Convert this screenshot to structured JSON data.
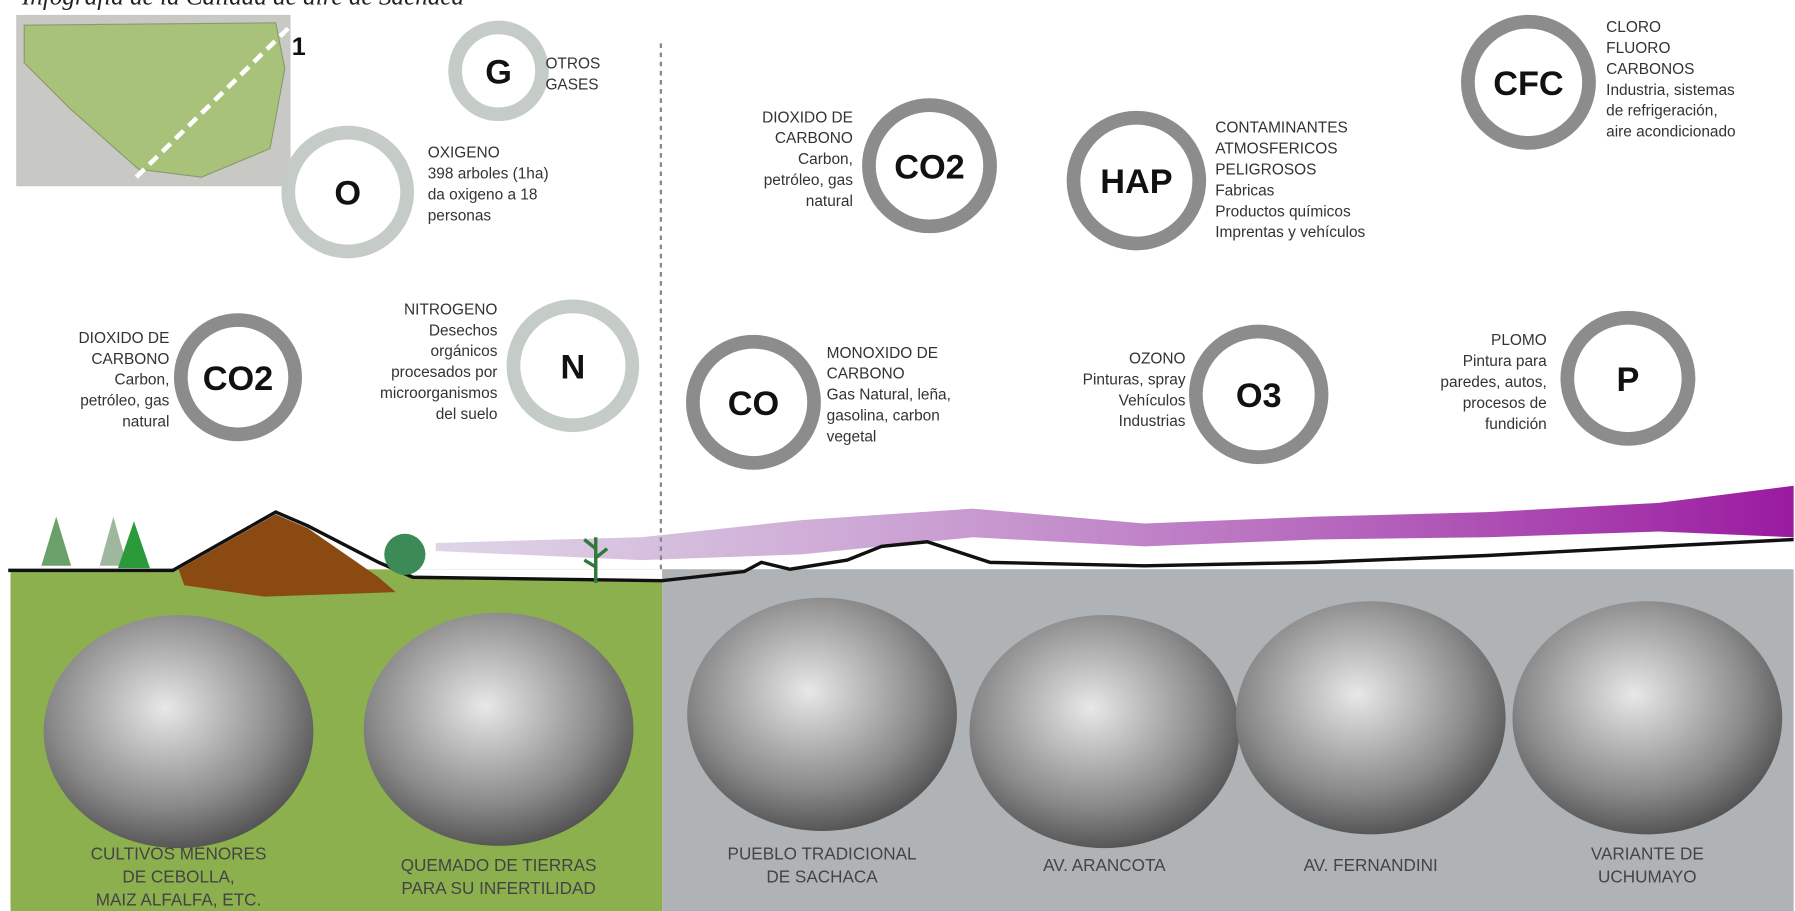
{
  "header": {
    "title": "Infografía de la Calidad de aire de Sachaca"
  },
  "map": {
    "label": "1"
  },
  "gases": [
    {
      "symbol": "G",
      "lines": [
        "OTROS",
        "GASES"
      ]
    },
    {
      "symbol": "O",
      "lines": [
        "OXIGENO",
        "398 arboles (1ha)",
        "da oxigeno a 18",
        "personas"
      ]
    },
    {
      "symbol": "CO2",
      "lines": [
        "DIOXIDO DE",
        "CARBONO",
        "Carbon,",
        "petróleo, gas",
        "natural"
      ]
    },
    {
      "symbol": "N",
      "lines": [
        "NITROGENO",
        "Desechos",
        "orgánicos",
        "procesados por",
        "microorganismos",
        "del suelo"
      ]
    },
    {
      "symbol": "CO2",
      "lines": [
        "DIOXIDO DE",
        "CARBONO",
        "Carbon,",
        "petróleo, gas",
        "natural"
      ]
    },
    {
      "symbol": "HAP",
      "lines": [
        "CONTAMINANTES",
        "ATMOSFERICOS",
        "PELIGROSOS",
        "Fabricas",
        "Productos químicos",
        "Imprentas y vehículos"
      ]
    },
    {
      "symbol": "CFC",
      "lines": [
        "CLORO",
        "FLUORO",
        "CARBONOS",
        "Industria, sistemas",
        "de refrigeración,",
        "aire acondicionado"
      ]
    },
    {
      "symbol": "CO",
      "lines": [
        "MONOXIDO DE",
        "CARBONO",
        "Gas Natural, leña,",
        "gasolina, carbon",
        "vegetal"
      ]
    },
    {
      "symbol": "O3",
      "lines": [
        "OZONO",
        "Pinturas, spray",
        "Vehículos",
        "Industrias"
      ]
    },
    {
      "symbol": "P",
      "lines": [
        "PLOMO",
        "Pintura para",
        "paredes, autos,",
        "procesos de",
        "fundición"
      ]
    }
  ],
  "photos": [
    {
      "caption": [
        "CULTIVOS MENORES",
        "DE CEBOLLA,",
        "MAIZ ALFALFA, ETC."
      ]
    },
    {
      "caption": [
        "QUEMADO DE TIERRAS",
        "PARA SU INFERTILIDAD"
      ]
    },
    {
      "caption": [
        "PUEBLO TRADICIONAL",
        "DE SACHACA"
      ]
    },
    {
      "caption": [
        "AV. ARANCOTA"
      ]
    },
    {
      "caption": [
        "AV. FERNANDINI"
      ]
    },
    {
      "caption": [
        "VARIANTE DE",
        "UCHUMAYO"
      ]
    }
  ]
}
